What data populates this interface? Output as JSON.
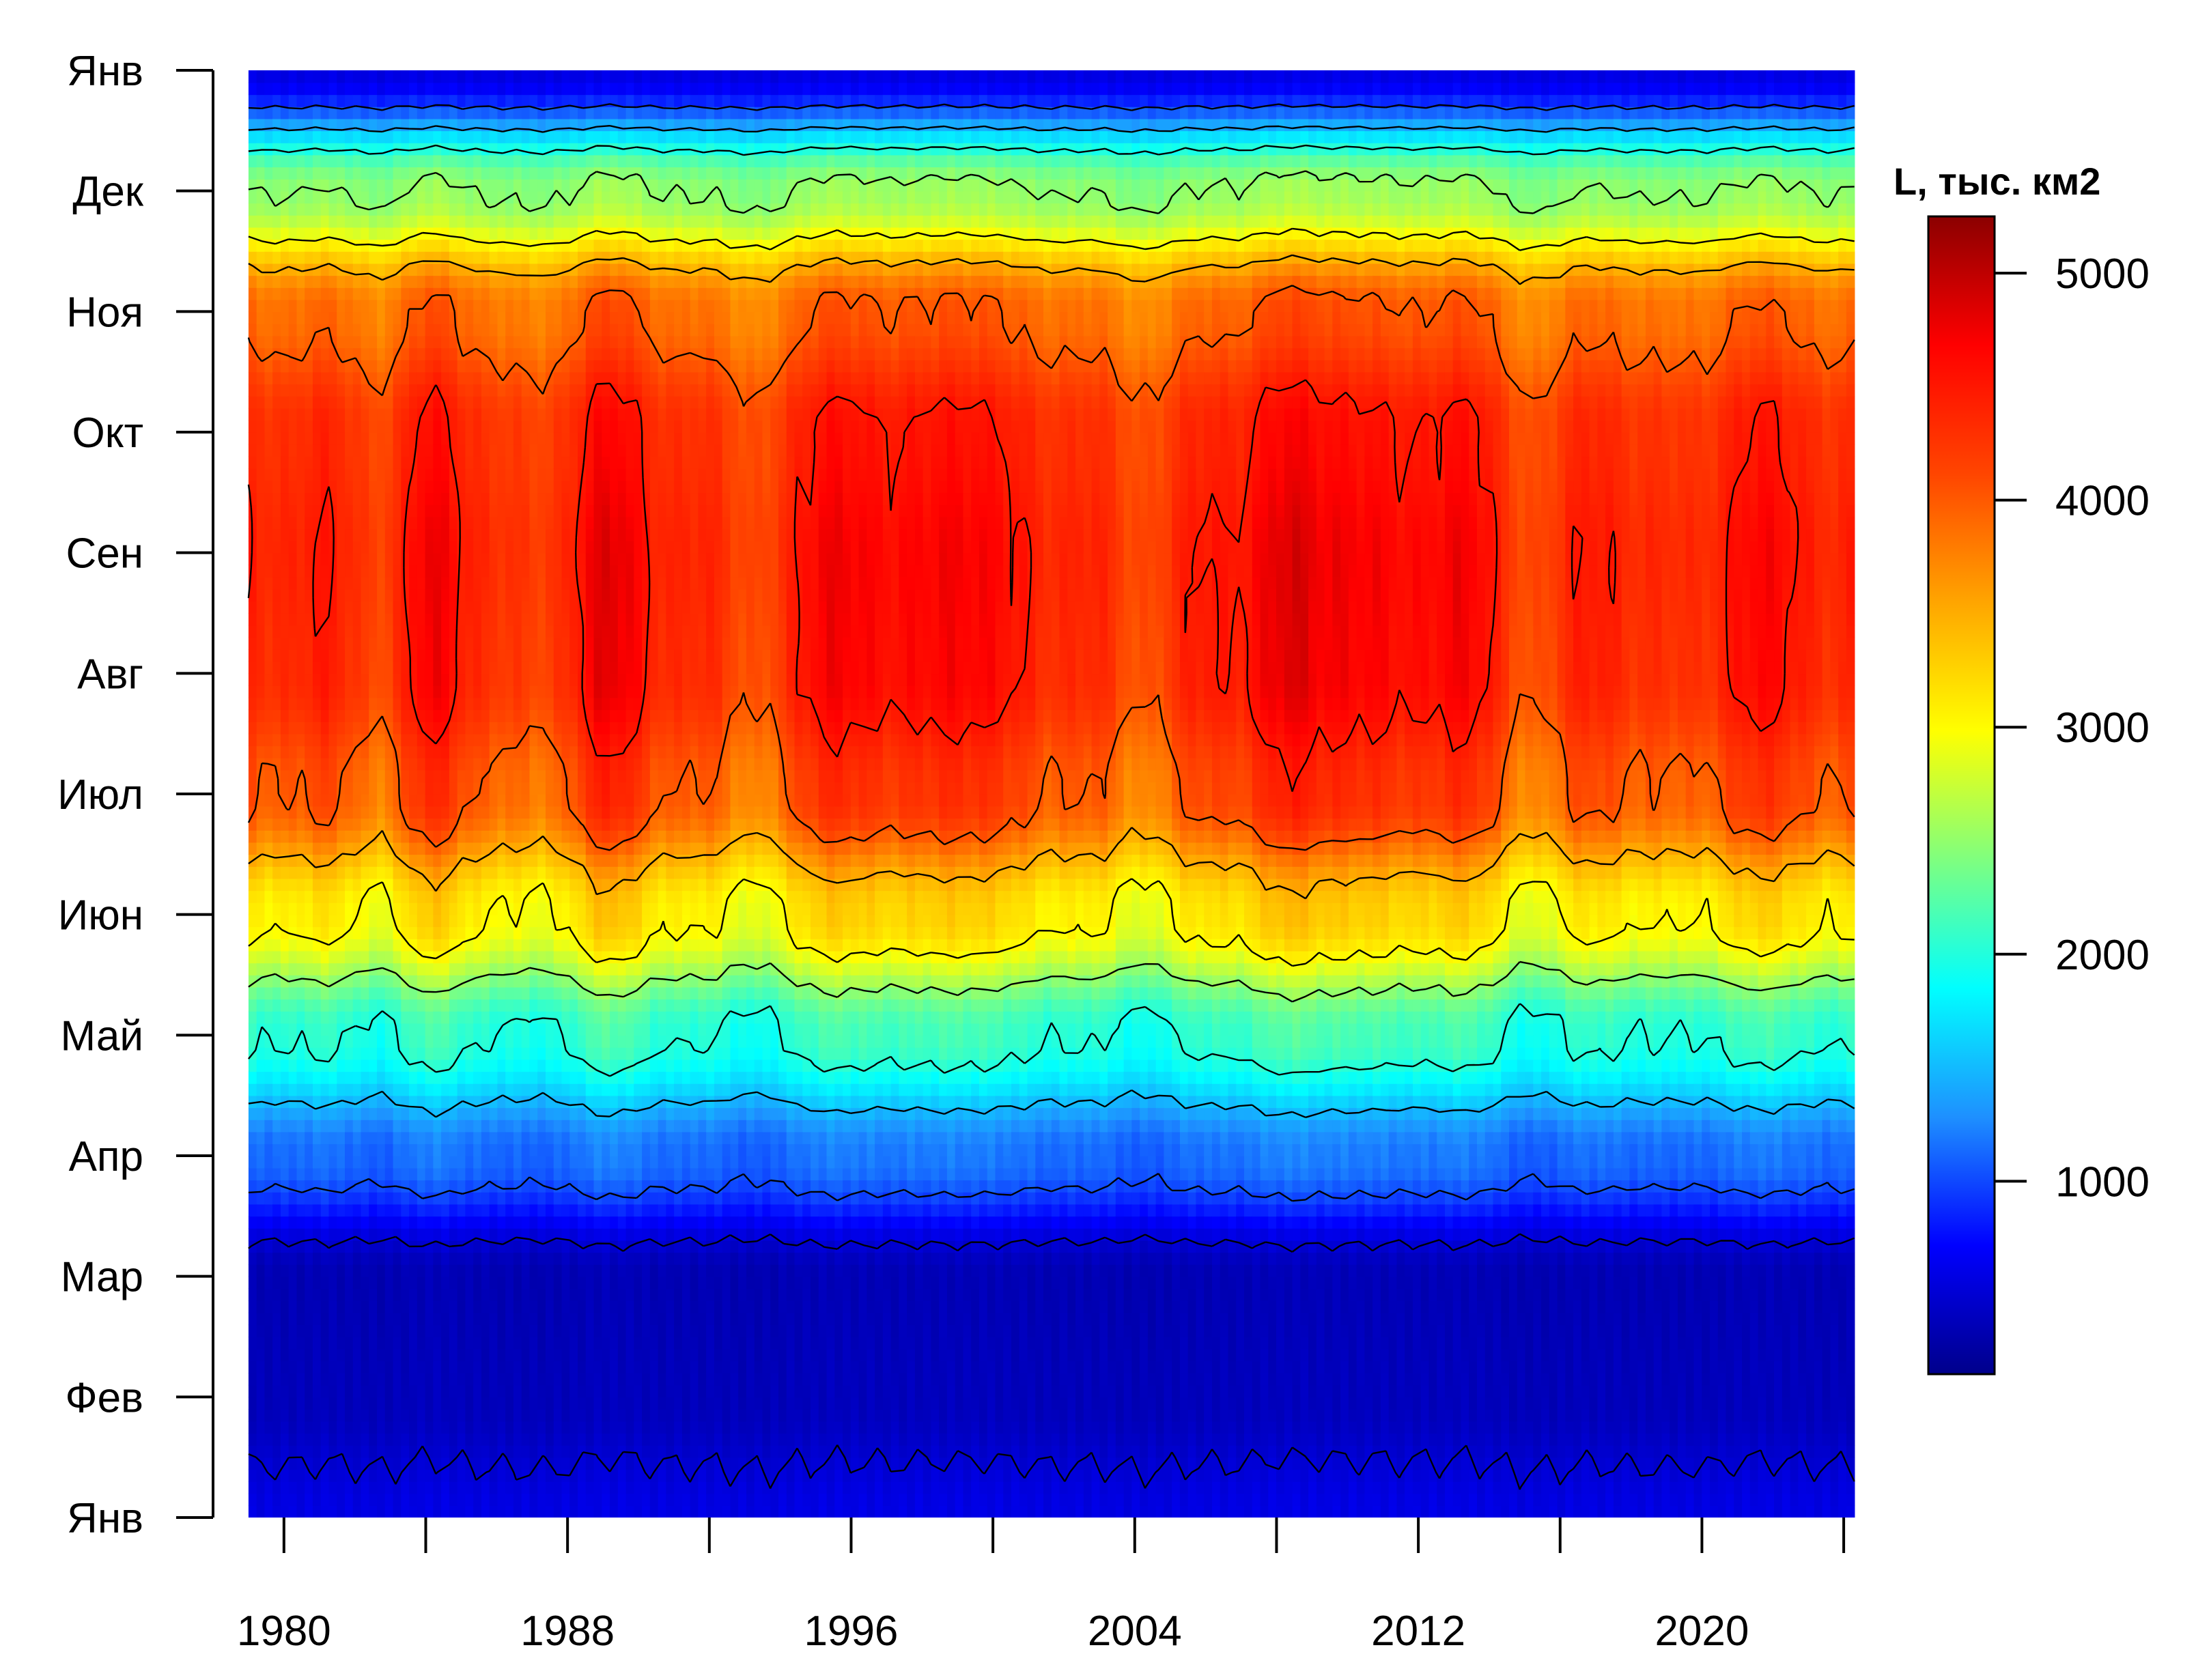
{
  "chart_data": {
    "type": "heatmap",
    "title": "",
    "xlabel": "",
    "ylabel": "",
    "x_ticks": [
      1980,
      1988,
      1996,
      2004,
      2012,
      2020
    ],
    "x_range": [
      1978,
      2025
    ],
    "x_data_start": 1979,
    "x_data_end": 2024.3,
    "y_ticks": [
      "Янв",
      "Фев",
      "Мар",
      "Апр",
      "Май",
      "Июн",
      "Июл",
      "Авг",
      "Сен",
      "Окт",
      "Ноя",
      "Дек",
      "Янв"
    ],
    "y_range": [
      0,
      12
    ],
    "colorbar": {
      "title": "L, тыс. км2",
      "ticks": [
        1000,
        2000,
        3000,
        4000,
        5000
      ],
      "range": [
        150,
        5250
      ],
      "palette": [
        "#00008B",
        "#0000FF",
        "#1E90FF",
        "#00FFFF",
        "#7FFF7F",
        "#FFFF00",
        "#FFA500",
        "#FF4500",
        "#FF0000",
        "#8B0000"
      ]
    },
    "contour_levels": [
      500,
      1000,
      1500,
      2000,
      2500,
      3000,
      3500,
      4000,
      4500,
      5000
    ],
    "monthly_mean": [
      580,
      380,
      350,
      1150,
      2050,
      3100,
      4050,
      4400,
      4450,
      4350,
      3900,
      2500,
      580
    ],
    "high_years": [
      1984,
      1989,
      1996,
      1999,
      2008,
      2010,
      2013,
      2021
    ],
    "low_years": [
      1983,
      1987,
      1993,
      2004,
      2015,
      2020
    ]
  }
}
